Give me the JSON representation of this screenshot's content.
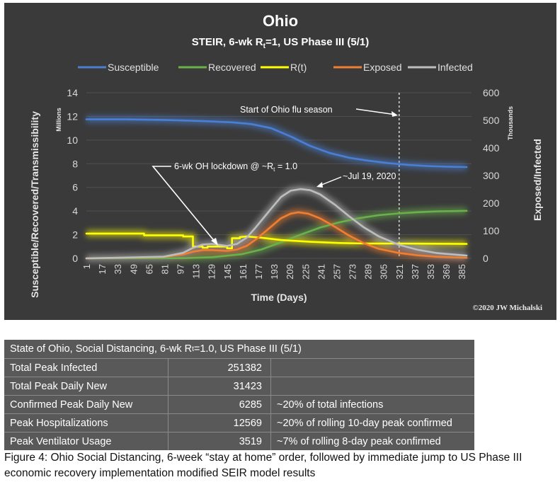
{
  "chart_data": {
    "type": "line",
    "title": "Ohio",
    "subtitle_parts": {
      "pre": "STEIR, 6-wk R",
      "sub": "t",
      "post": "=1, US Phase III (5/1)"
    },
    "xlabel": "Time (Days)",
    "ylabel_left": "Susceptible/Recovered/Transmissibility",
    "ylabel_right": "Exposed/Infected",
    "left_unit": "Millions",
    "right_unit": "Thousands",
    "ylim_left": [
      0,
      14
    ],
    "ylim_right": [
      0,
      600
    ],
    "xlim": [
      1,
      395
    ],
    "yticks_left": [
      "0",
      "2",
      "4",
      "6",
      "8",
      "10",
      "12",
      "14"
    ],
    "yticks_right": [
      "0",
      "100",
      "200",
      "300",
      "400",
      "500",
      "600"
    ],
    "xticks": [
      "1",
      "17",
      "33",
      "49",
      "65",
      "81",
      "97",
      "113",
      "129",
      "145",
      "161",
      "177",
      "193",
      "209",
      "225",
      "241",
      "257",
      "273",
      "289",
      "305",
      "321",
      "337",
      "353",
      "369",
      "385"
    ],
    "legend_position": "top",
    "series": [
      {
        "name": "Susceptible",
        "color": "#4a7fd4",
        "axis": "left",
        "x": [
          1,
          40,
          80,
          120,
          150,
          170,
          190,
          210,
          230,
          250,
          270,
          290,
          310,
          330,
          350,
          370,
          390
        ],
        "y": [
          11.75,
          11.75,
          11.7,
          11.6,
          11.5,
          11.35,
          11.0,
          10.3,
          9.5,
          8.9,
          8.5,
          8.25,
          8.05,
          7.9,
          7.8,
          7.75,
          7.72
        ]
      },
      {
        "name": "Recovered",
        "color": "#6ab04c",
        "axis": "left",
        "x": [
          1,
          100,
          130,
          160,
          180,
          200,
          220,
          240,
          260,
          280,
          300,
          320,
          340,
          360,
          390
        ],
        "y": [
          0,
          0.02,
          0.1,
          0.35,
          0.75,
          1.35,
          2.0,
          2.6,
          3.05,
          3.4,
          3.65,
          3.8,
          3.9,
          3.97,
          4.02
        ]
      },
      {
        "name": "R(t)",
        "color": "#ffff00",
        "axis": "left",
        "x": [
          1,
          60,
          60,
          100,
          100,
          110,
          110,
          120,
          120,
          125,
          125,
          145,
          145,
          150,
          150,
          158,
          158,
          165,
          180,
          200,
          230,
          260,
          290,
          320,
          390
        ],
        "y": [
          2.1,
          2.1,
          1.95,
          1.95,
          1.85,
          1.85,
          1.0,
          1.0,
          0.9,
          0.9,
          1.0,
          1.0,
          0.85,
          0.85,
          1.7,
          1.7,
          1.8,
          1.85,
          1.75,
          1.55,
          1.4,
          1.3,
          1.25,
          1.25,
          1.22
        ]
      },
      {
        "name": "Exposed",
        "color": "#f07f30",
        "axis": "right",
        "x": [
          1,
          80,
          100,
          110,
          120,
          130,
          145,
          155,
          165,
          175,
          190,
          200,
          210,
          218,
          228,
          240,
          255,
          270,
          285,
          300,
          320,
          340,
          360,
          390
        ],
        "y": [
          0,
          5,
          14,
          24,
          30,
          30,
          27,
          32,
          45,
          70,
          115,
          145,
          162,
          167,
          162,
          145,
          115,
          82,
          55,
          35,
          20,
          11,
          6,
          2
        ]
      },
      {
        "name": "Infected",
        "color": "#bdbdbd",
        "axis": "right",
        "x": [
          1,
          80,
          100,
          110,
          120,
          130,
          145,
          155,
          165,
          175,
          190,
          200,
          210,
          220,
          230,
          240,
          255,
          270,
          285,
          300,
          320,
          340,
          360,
          390
        ],
        "y": [
          0,
          6,
          20,
          38,
          50,
          52,
          45,
          52,
          75,
          115,
          180,
          222,
          245,
          251,
          247,
          232,
          195,
          152,
          112,
          80,
          50,
          31,
          19,
          10
        ]
      }
    ],
    "annotations": {
      "flu_season": "Start of Ohio flu season",
      "lockdown": "6-wk OH lockdown @ ~R",
      "lockdown_sub": "t",
      "lockdown_post": " = 1.0",
      "peak_date": "~Jul 19, 2020",
      "flu_line_day": 321
    },
    "copyright": "©2020 JW Michalski"
  },
  "table": {
    "header_parts": {
      "pre": "State of Ohio, Social Distancing, 6-wk R",
      "sub": "t",
      "post": "=1.0, US Phase III (5/1)"
    },
    "rows": [
      {
        "label": "Total Peak Infected",
        "value": "251382",
        "note": ""
      },
      {
        "label": "Total Peak Daily New",
        "value": "31423",
        "note": ""
      },
      {
        "label": "Confirmed Peak Daily New",
        "value": "6285",
        "note": "~20% of total infections"
      },
      {
        "label": "Peak Hospitalizations",
        "value": "12569",
        "note": "~20% of rolling 10-day peak confirmed"
      },
      {
        "label": "Peak Ventilator Usage",
        "value": "3519",
        "note": "~7% of rolling 8-day peak confirmed"
      }
    ]
  },
  "caption": "Figure 4: Ohio Social Distancing, 6-week “stay at home” order, followed by immediate jump to US Phase III economic recovery implementation modified SEIR model results"
}
